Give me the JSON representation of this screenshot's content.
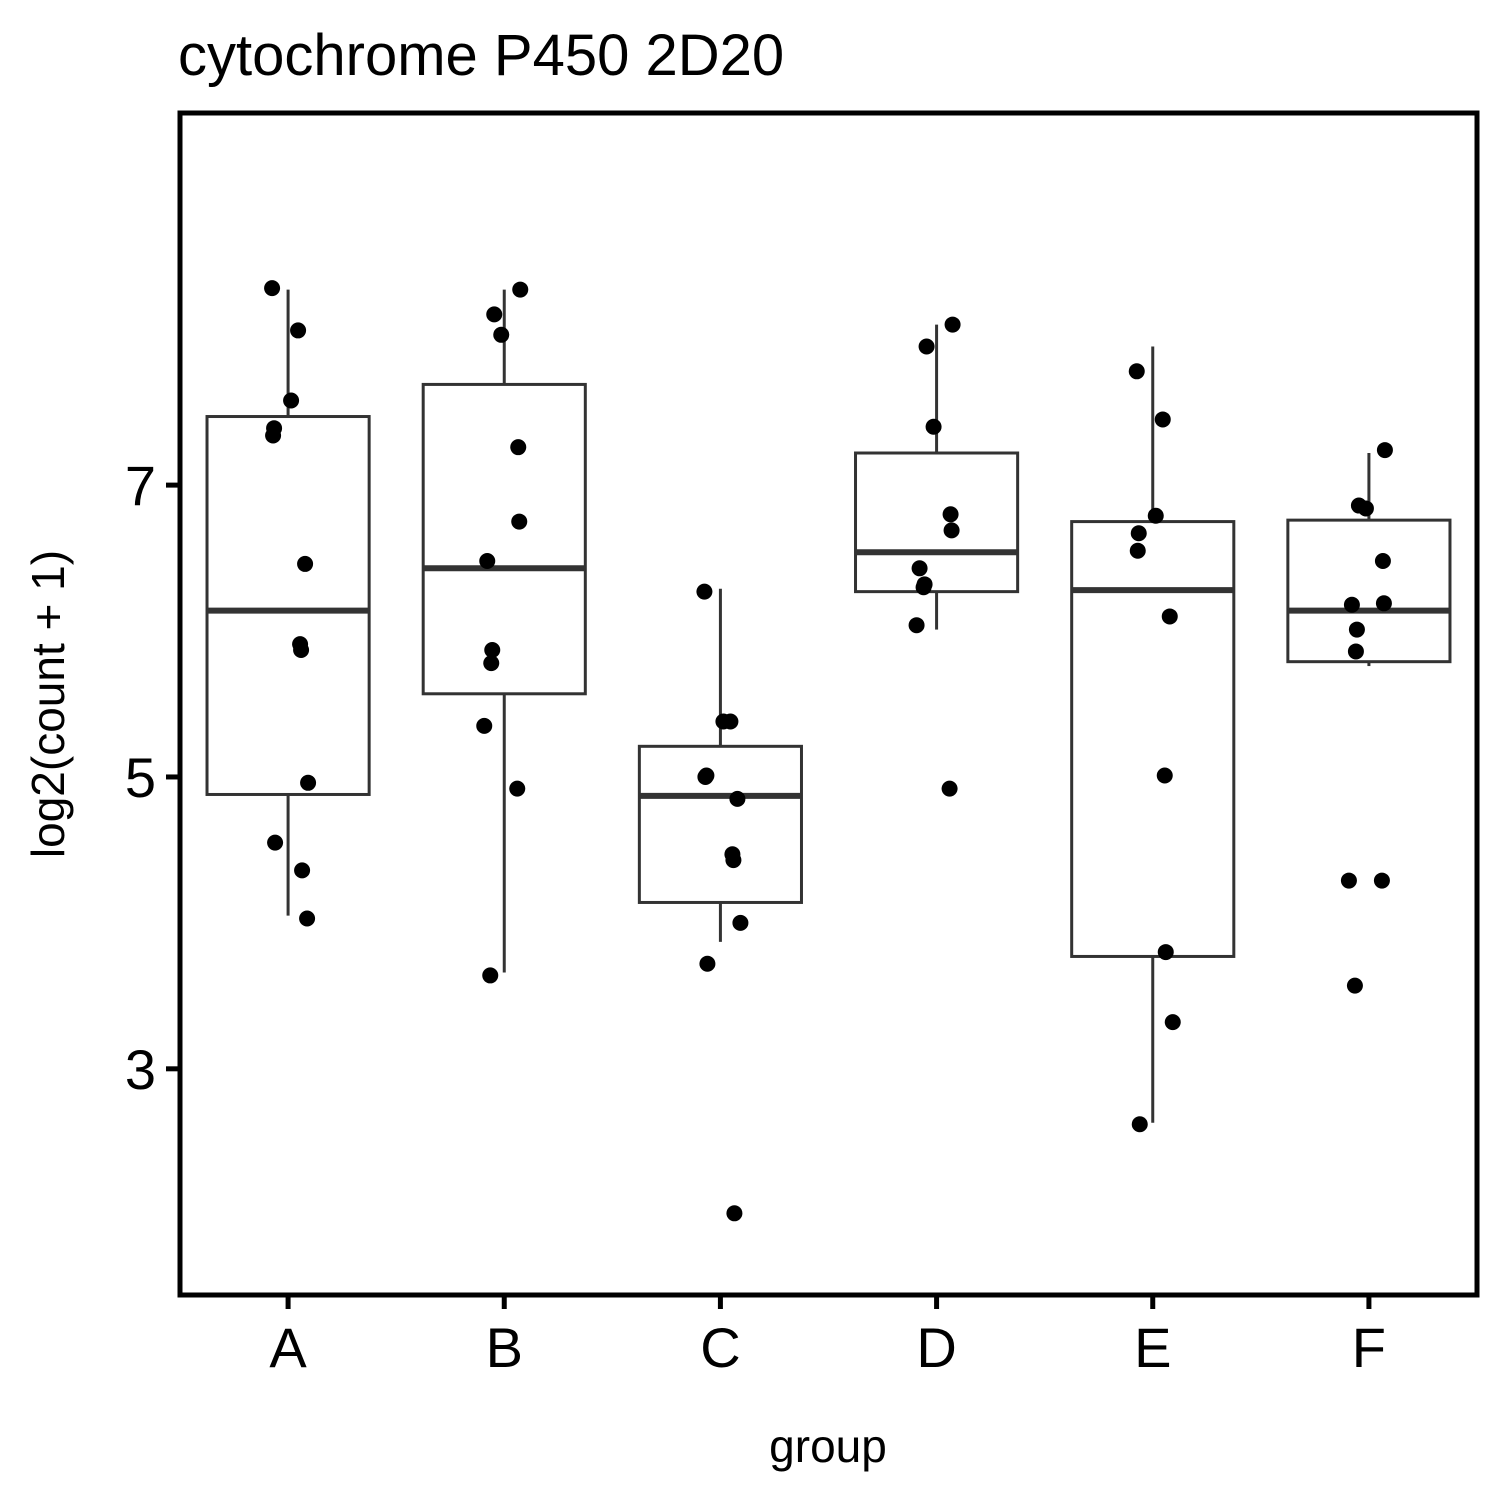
{
  "chart_data": {
    "type": "box",
    "title": "cytochrome P450 2D20",
    "xlabel": "group",
    "ylabel": "log2(count + 1)",
    "categories": [
      "A",
      "B",
      "C",
      "D",
      "E",
      "F"
    ],
    "yticks": [
      3,
      5,
      7
    ],
    "ylim": [
      1.45,
      9.55
    ],
    "grid": false,
    "legend": "none",
    "boxes": [
      {
        "group": "A",
        "whisker_low": 4.05,
        "q1": 4.88,
        "median": 6.14,
        "q3": 7.47,
        "whisker_high": 8.34
      },
      {
        "group": "B",
        "whisker_low": 3.66,
        "q1": 5.57,
        "median": 6.43,
        "q3": 7.69,
        "whisker_high": 8.34
      },
      {
        "group": "C",
        "whisker_low": 3.87,
        "q1": 4.14,
        "median": 4.87,
        "q3": 5.21,
        "whisker_high": 6.29
      },
      {
        "group": "D",
        "whisker_low": 6.01,
        "q1": 6.27,
        "median": 6.54,
        "q3": 7.22,
        "whisker_high": 8.1
      },
      {
        "group": "E",
        "whisker_low": 2.63,
        "q1": 3.77,
        "median": 6.28,
        "q3": 6.75,
        "whisker_high": 7.95
      },
      {
        "group": "F",
        "whisker_low": 5.76,
        "q1": 5.79,
        "median": 6.14,
        "q3": 6.76,
        "whisker_high": 7.22
      }
    ],
    "points": [
      {
        "group": "A",
        "values": [
          8.35,
          8.06,
          7.58,
          7.39,
          7.34,
          6.46,
          5.91,
          5.87,
          4.96,
          4.55,
          4.36,
          4.03
        ]
      },
      {
        "group": "B",
        "values": [
          8.34,
          8.17,
          8.03,
          7.26,
          6.75,
          6.48,
          5.87,
          5.78,
          5.35,
          4.92,
          3.64
        ]
      },
      {
        "group": "C",
        "values": [
          6.27,
          5.38,
          5.38,
          5.01,
          5.0,
          4.85,
          4.47,
          4.43,
          4.0,
          3.72,
          2.01
        ]
      },
      {
        "group": "D",
        "values": [
          8.1,
          7.95,
          7.4,
          6.8,
          6.69,
          6.43,
          6.32,
          6.3,
          6.04,
          4.92
        ]
      },
      {
        "group": "E",
        "values": [
          7.78,
          7.45,
          6.79,
          6.67,
          6.55,
          6.1,
          5.01,
          3.8,
          3.32,
          2.62
        ]
      },
      {
        "group": "F",
        "values": [
          7.24,
          6.86,
          6.84,
          6.48,
          6.19,
          6.18,
          6.01,
          5.86,
          4.29,
          4.29,
          3.57
        ]
      }
    ]
  }
}
